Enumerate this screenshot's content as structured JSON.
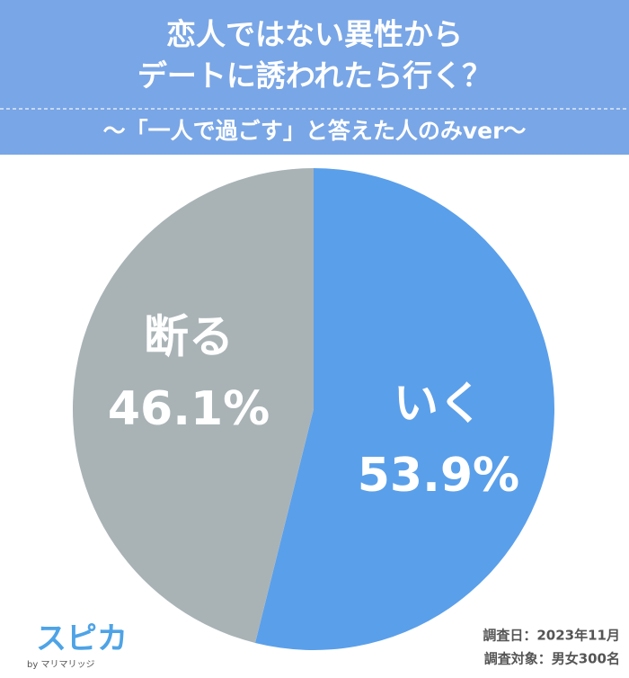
{
  "chart_data": {
    "type": "pie",
    "title": [
      "恋人ではない異性から",
      "デートに誘われたら行く？"
    ],
    "subtitle": "〜「一人で過ごす」と答えた人のみver〜",
    "categories": [
      "いく",
      "断る"
    ],
    "values": [
      53.9,
      46.1
    ],
    "value_labels": [
      "53.9%",
      "46.1%"
    ],
    "colors": [
      "#5a9fea",
      "#a9b3b6"
    ],
    "footer": [
      "調査日：2023年11月",
      "調査対象：男女300名"
    ],
    "logo": {
      "name": "スピカ",
      "byline": "by マリマリッジ"
    }
  }
}
